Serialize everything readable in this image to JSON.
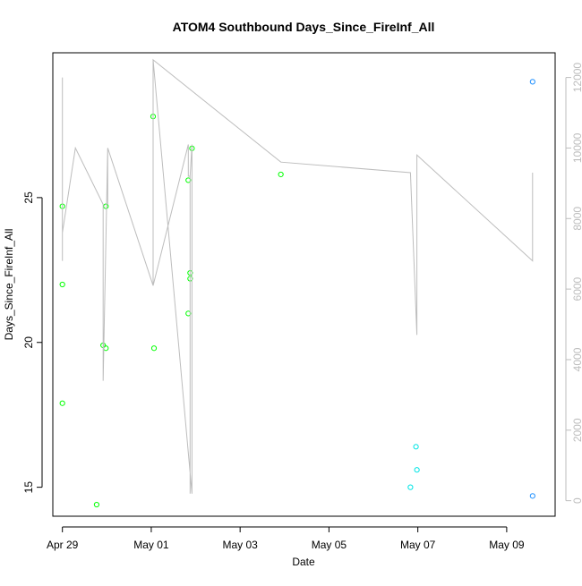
{
  "chart_data": {
    "type": "scatter",
    "title": "ATOM4 Southbound Days_Since_FireInf_All",
    "xlabel": "Date",
    "ylabel": "Days_Since_FireInf_All",
    "x_ticks": [
      "Apr 29",
      "May 01",
      "May 03",
      "May 05",
      "May 07",
      "May 09"
    ],
    "x_tick_values": [
      "2019-04-29",
      "2019-05-01",
      "2019-05-03",
      "2019-05-05",
      "2019-05-07",
      "2019-05-09"
    ],
    "xlim": [
      "2019-04-28 18:50",
      "2019-05-10 02:10"
    ],
    "y_ticks": [
      "15",
      "20",
      "25"
    ],
    "y_tick_values": [
      15,
      20,
      25
    ],
    "ylim": [
      14.0,
      30.0
    ],
    "y2_ticks": [
      "0",
      "2000",
      "4000",
      "6000",
      "8000",
      "10000",
      "12000"
    ],
    "y2_tick_values": [
      0,
      2000,
      4000,
      6000,
      8000,
      10000,
      12000
    ],
    "y2lim": [
      -440,
      12700
    ],
    "grid": false,
    "colors": {
      "green": "#00ff00",
      "cyan": "#00e5e5",
      "blue": "#1e90ff",
      "line": "#bdbdbd"
    },
    "series": [
      {
        "color": "#00ff00",
        "axis": "left",
        "points": [
          {
            "x": "2019-04-29 00:00",
            "y": 24.7
          },
          {
            "x": "2019-04-29 00:00",
            "y": 22.0
          },
          {
            "x": "2019-04-29 00:00",
            "y": 17.9
          },
          {
            "x": "2019-04-29 22:00",
            "y": 19.9
          },
          {
            "x": "2019-04-29 23:30",
            "y": 24.7
          },
          {
            "x": "2019-04-29 23:30",
            "y": 19.8
          },
          {
            "x": "2019-04-29 18:30",
            "y": 14.4
          },
          {
            "x": "2019-05-01 01:00",
            "y": 27.8
          },
          {
            "x": "2019-05-01 01:30",
            "y": 19.8
          },
          {
            "x": "2019-05-01 20:00",
            "y": 25.6
          },
          {
            "x": "2019-05-01 20:00",
            "y": 21.0
          },
          {
            "x": "2019-05-01 21:00",
            "y": 22.4
          },
          {
            "x": "2019-05-01 21:00",
            "y": 22.2
          },
          {
            "x": "2019-05-01 22:00",
            "y": 26.7
          },
          {
            "x": "2019-05-03 22:00",
            "y": 25.8
          }
        ]
      },
      {
        "color": "#00e5e5",
        "axis": "left",
        "points": [
          {
            "x": "2019-05-06 20:00",
            "y": 15.0
          },
          {
            "x": "2019-05-06 23:30",
            "y": 15.6
          },
          {
            "x": "2019-05-06 23:00",
            "y": 16.4
          }
        ]
      },
      {
        "color": "#1e90ff",
        "axis": "left",
        "points": [
          {
            "x": "2019-05-09 14:00",
            "y": 29.0
          },
          {
            "x": "2019-05-09 14:00",
            "y": 14.7
          }
        ]
      },
      {
        "color": "#bdbdbd",
        "axis": "right",
        "line": true,
        "points": [
          {
            "x": "2019-04-29 00:00",
            "y": 7600
          },
          {
            "x": "2019-04-29 00:00",
            "y": 6800
          },
          {
            "x": "2019-04-29 00:00",
            "y": 12000
          },
          {
            "x": "2019-04-29 00:00",
            "y": 7600
          },
          {
            "x": "2019-04-29 07:00",
            "y": 10000
          },
          {
            "x": "2019-04-29 22:00",
            "y": 8400
          },
          {
            "x": "2019-04-29 22:00",
            "y": 3400
          },
          {
            "x": "2019-04-30 00:30",
            "y": 10000
          },
          {
            "x": "2019-04-30 00:30",
            "y": 8400
          },
          {
            "x": "2019-04-30 00:30",
            "y": 10000
          },
          {
            "x": "2019-05-01 01:00",
            "y": 6100
          },
          {
            "x": "2019-05-01 01:00",
            "y": 12500
          },
          {
            "x": "2019-05-01 01:00",
            "y": 6100
          },
          {
            "x": "2019-05-01 20:00",
            "y": 10100
          },
          {
            "x": "2019-05-01 20:00",
            "y": 9200
          },
          {
            "x": "2019-05-01 21:00",
            "y": 9200
          },
          {
            "x": "2019-05-01 21:00",
            "y": 200
          },
          {
            "x": "2019-05-01 21:00",
            "y": 9200
          },
          {
            "x": "2019-05-01 22:00",
            "y": 10100
          },
          {
            "x": "2019-05-01 22:00",
            "y": 200
          },
          {
            "x": "2019-05-01 01:00",
            "y": 12500
          },
          {
            "x": "2019-05-03 22:00",
            "y": 9600
          },
          {
            "x": "2019-05-06 20:00",
            "y": 9300
          },
          {
            "x": "2019-05-06 23:30",
            "y": 4700
          },
          {
            "x": "2019-05-06 23:30",
            "y": 9800
          },
          {
            "x": "2019-05-09 14:00",
            "y": 6800
          },
          {
            "x": "2019-05-09 14:00",
            "y": 9300
          }
        ]
      }
    ]
  }
}
